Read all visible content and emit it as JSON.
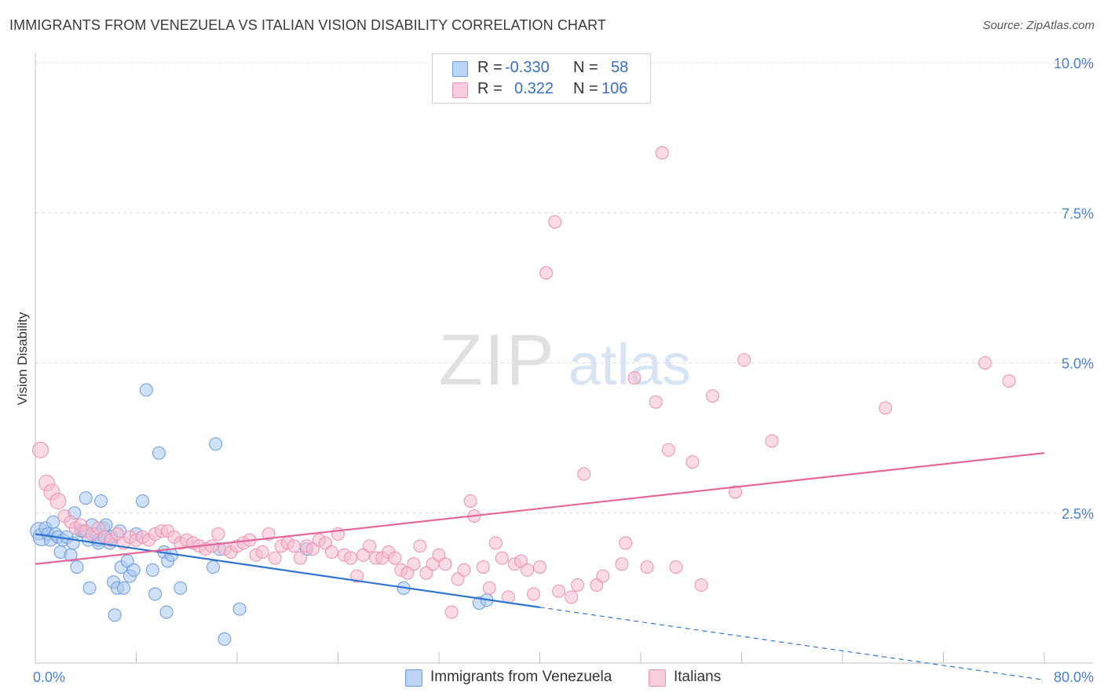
{
  "title": "IMMIGRANTS FROM VENEZUELA VS ITALIAN VISION DISABILITY CORRELATION CHART",
  "source": "Source: ZipAtlas.com",
  "watermark": {
    "zip": "ZIP",
    "atlas": "atlas"
  },
  "legend": {
    "rows": [
      {
        "r_label": "R =",
        "r_value": "-0.330",
        "n_label": "N =",
        "n_value": "58"
      },
      {
        "r_label": "R =",
        "r_value": "0.322",
        "n_label": "N =",
        "n_value": "106"
      }
    ]
  },
  "bottom_legend": [
    "Immigrants from Venezuela",
    "Italians"
  ],
  "colors": {
    "blue_fill": "#a9c8f0",
    "blue_stroke": "#6a9be0",
    "blue_line": "#2f74d0",
    "pink_fill": "#f6bcd0",
    "pink_stroke": "#ee90b0",
    "pink_line": "#e5679a",
    "axis_label": "#4a7fd0",
    "grid": "#dddddd"
  },
  "chart_data": {
    "type": "scatter",
    "title": "IMMIGRANTS FROM VENEZUELA VS ITALIAN VISION DISABILITY CORRELATION CHART",
    "xlabel": "",
    "ylabel": "Vision Disability",
    "xlim": [
      0,
      80
    ],
    "ylim": [
      0,
      10
    ],
    "x_tick_labels": [
      "0.0%",
      "80.0%"
    ],
    "y_ticks": [
      2.5,
      5.0,
      7.5,
      10.0
    ],
    "y_tick_labels": [
      "2.5%",
      "5.0%",
      "7.5%",
      "10.0%"
    ],
    "grid": true,
    "series": [
      {
        "name": "Immigrants from Venezuela",
        "r": -0.33,
        "n": 58,
        "trend": {
          "x0": 0,
          "y0": 2.15,
          "x1": 40,
          "y1": 0.93,
          "dashed_to_x": 80,
          "dashed_to_y": -0.28
        },
        "points": [
          [
            0.3,
            2.2
          ],
          [
            0.5,
            2.1
          ],
          [
            0.8,
            2.25
          ],
          [
            1.0,
            2.15
          ],
          [
            1.2,
            2.05
          ],
          [
            1.4,
            2.35
          ],
          [
            1.6,
            2.15
          ],
          [
            1.8,
            2.1
          ],
          [
            2.0,
            1.85
          ],
          [
            2.2,
            2.05
          ],
          [
            2.5,
            2.1
          ],
          [
            2.8,
            1.8
          ],
          [
            3.0,
            2.0
          ],
          [
            3.1,
            2.5
          ],
          [
            3.3,
            1.6
          ],
          [
            3.6,
            2.2
          ],
          [
            3.8,
            2.2
          ],
          [
            4.0,
            2.75
          ],
          [
            4.2,
            2.05
          ],
          [
            4.3,
            1.25
          ],
          [
            4.5,
            2.3
          ],
          [
            4.8,
            2.15
          ],
          [
            5.0,
            2.0
          ],
          [
            5.2,
            2.7
          ],
          [
            5.4,
            2.25
          ],
          [
            5.6,
            2.3
          ],
          [
            5.9,
            2.0
          ],
          [
            6.0,
            2.1
          ],
          [
            6.2,
            1.35
          ],
          [
            6.3,
            0.8
          ],
          [
            6.5,
            1.25
          ],
          [
            6.7,
            2.2
          ],
          [
            6.8,
            1.6
          ],
          [
            7.0,
            1.25
          ],
          [
            7.3,
            1.7
          ],
          [
            7.5,
            1.45
          ],
          [
            7.8,
            1.55
          ],
          [
            8.0,
            2.15
          ],
          [
            8.5,
            2.7
          ],
          [
            8.8,
            4.55
          ],
          [
            9.3,
            1.55
          ],
          [
            9.5,
            1.15
          ],
          [
            9.8,
            3.5
          ],
          [
            10.2,
            1.85
          ],
          [
            10.4,
            0.85
          ],
          [
            10.5,
            1.7
          ],
          [
            10.8,
            1.8
          ],
          [
            11.5,
            1.25
          ],
          [
            14.1,
            1.6
          ],
          [
            14.3,
            3.65
          ],
          [
            14.6,
            1.9
          ],
          [
            15.0,
            0.4
          ],
          [
            16.2,
            0.9
          ],
          [
            21.5,
            1.9
          ],
          [
            29.2,
            1.25
          ],
          [
            35.2,
            1.0
          ],
          [
            35.8,
            1.05
          ],
          [
            5.0,
            2.05
          ]
        ]
      },
      {
        "name": "Italians",
        "r": 0.322,
        "n": 106,
        "trend": {
          "x0": 0,
          "y0": 1.65,
          "x1": 80,
          "y1": 3.5
        },
        "points": [
          [
            0.4,
            3.55
          ],
          [
            0.9,
            3.0
          ],
          [
            1.3,
            2.85
          ],
          [
            1.8,
            2.7
          ],
          [
            2.3,
            2.45
          ],
          [
            2.8,
            2.35
          ],
          [
            3.2,
            2.25
          ],
          [
            3.6,
            2.3
          ],
          [
            4.0,
            2.2
          ],
          [
            4.5,
            2.15
          ],
          [
            5.0,
            2.25
          ],
          [
            5.5,
            2.1
          ],
          [
            6.0,
            2.05
          ],
          [
            6.5,
            2.15
          ],
          [
            7.0,
            2.0
          ],
          [
            7.5,
            2.1
          ],
          [
            8.0,
            2.05
          ],
          [
            8.5,
            2.1
          ],
          [
            9.0,
            2.05
          ],
          [
            9.5,
            2.15
          ],
          [
            10.0,
            2.2
          ],
          [
            10.5,
            2.2
          ],
          [
            11.0,
            2.1
          ],
          [
            11.5,
            2.0
          ],
          [
            12.0,
            2.05
          ],
          [
            12.5,
            2.0
          ],
          [
            13.0,
            1.95
          ],
          [
            13.5,
            1.9
          ],
          [
            14.0,
            1.95
          ],
          [
            14.5,
            2.15
          ],
          [
            15.0,
            1.9
          ],
          [
            15.5,
            1.85
          ],
          [
            16.0,
            1.95
          ],
          [
            16.5,
            2.0
          ],
          [
            17.0,
            2.05
          ],
          [
            17.5,
            1.8
          ],
          [
            18.0,
            1.85
          ],
          [
            18.5,
            2.15
          ],
          [
            19.0,
            1.75
          ],
          [
            19.5,
            1.95
          ],
          [
            20.0,
            2.0
          ],
          [
            20.5,
            1.95
          ],
          [
            21.0,
            1.75
          ],
          [
            21.5,
            1.95
          ],
          [
            22.0,
            1.9
          ],
          [
            22.5,
            2.05
          ],
          [
            23.0,
            2.0
          ],
          [
            23.5,
            1.85
          ],
          [
            24.0,
            2.15
          ],
          [
            24.5,
            1.8
          ],
          [
            25.0,
            1.75
          ],
          [
            25.5,
            1.45
          ],
          [
            26.0,
            1.8
          ],
          [
            26.5,
            1.95
          ],
          [
            27.0,
            1.75
          ],
          [
            27.5,
            1.75
          ],
          [
            28.0,
            1.85
          ],
          [
            28.5,
            1.75
          ],
          [
            29.0,
            1.55
          ],
          [
            29.5,
            1.5
          ],
          [
            30.0,
            1.65
          ],
          [
            30.5,
            1.95
          ],
          [
            31.0,
            1.5
          ],
          [
            31.5,
            1.65
          ],
          [
            32.0,
            1.8
          ],
          [
            32.5,
            1.65
          ],
          [
            33.0,
            0.85
          ],
          [
            33.5,
            1.4
          ],
          [
            34.0,
            1.55
          ],
          [
            34.5,
            2.7
          ],
          [
            34.8,
            2.45
          ],
          [
            35.5,
            1.6
          ],
          [
            36.0,
            1.25
          ],
          [
            36.5,
            2.0
          ],
          [
            37.0,
            1.75
          ],
          [
            37.5,
            1.1
          ],
          [
            38.0,
            1.65
          ],
          [
            38.5,
            1.7
          ],
          [
            39.0,
            1.55
          ],
          [
            39.5,
            1.15
          ],
          [
            40.0,
            1.6
          ],
          [
            40.5,
            6.5
          ],
          [
            41.2,
            7.35
          ],
          [
            41.5,
            1.2
          ],
          [
            42.5,
            1.1
          ],
          [
            43.0,
            1.3
          ],
          [
            43.5,
            3.15
          ],
          [
            44.5,
            1.3
          ],
          [
            45.0,
            1.45
          ],
          [
            46.5,
            1.65
          ],
          [
            46.8,
            2.0
          ],
          [
            47.5,
            4.75
          ],
          [
            48.5,
            1.6
          ],
          [
            49.2,
            4.35
          ],
          [
            49.7,
            8.5
          ],
          [
            50.2,
            3.55
          ],
          [
            50.8,
            1.6
          ],
          [
            52.1,
            3.35
          ],
          [
            52.8,
            1.3
          ],
          [
            53.7,
            4.45
          ],
          [
            55.5,
            2.85
          ],
          [
            56.2,
            5.05
          ],
          [
            58.4,
            3.7
          ],
          [
            67.4,
            4.25
          ],
          [
            75.3,
            5.0
          ],
          [
            77.2,
            4.7
          ]
        ]
      }
    ]
  }
}
